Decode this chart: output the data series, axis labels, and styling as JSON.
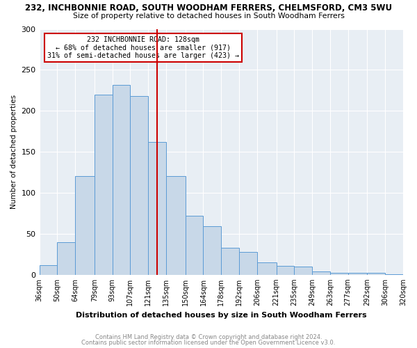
{
  "title": "232, INCHBONNIE ROAD, SOUTH WOODHAM FERRERS, CHELMSFORD, CM3 5WU",
  "subtitle": "Size of property relative to detached houses in South Woodham Ferrers",
  "xlabel": "Distribution of detached houses by size in South Woodham Ferrers",
  "ylabel": "Number of detached properties",
  "bin_labels": [
    "36sqm",
    "50sqm",
    "64sqm",
    "79sqm",
    "93sqm",
    "107sqm",
    "121sqm",
    "135sqm",
    "150sqm",
    "164sqm",
    "178sqm",
    "192sqm",
    "206sqm",
    "221sqm",
    "235sqm",
    "249sqm",
    "263sqm",
    "277sqm",
    "292sqm",
    "306sqm",
    "320sqm"
  ],
  "bin_edges": [
    36,
    50,
    64,
    79,
    93,
    107,
    121,
    135,
    150,
    164,
    178,
    192,
    206,
    221,
    235,
    249,
    263,
    277,
    292,
    306,
    320
  ],
  "bar_heights": [
    12,
    40,
    120,
    220,
    232,
    218,
    162,
    120,
    72,
    59,
    33,
    28,
    15,
    11,
    10,
    4,
    2,
    2,
    2,
    1
  ],
  "bar_color": "#c8d8e8",
  "bar_edgecolor": "#5b9bd5",
  "vline_x": 128,
  "vline_color": "#cc0000",
  "ylim": [
    0,
    300
  ],
  "yticks": [
    0,
    50,
    100,
    150,
    200,
    250,
    300
  ],
  "annotation_title": "232 INCHBONNIE ROAD: 128sqm",
  "annotation_line1": "← 68% of detached houses are smaller (917)",
  "annotation_line2": "31% of semi-detached houses are larger (423) →",
  "annotation_box_edgecolor": "#cc0000",
  "footer_line1": "Contains HM Land Registry data © Crown copyright and database right 2024.",
  "footer_line2": "Contains public sector information licensed under the Open Government Licence v3.0.",
  "background_color": "#ffffff",
  "plot_bg_color": "#e8eef4"
}
